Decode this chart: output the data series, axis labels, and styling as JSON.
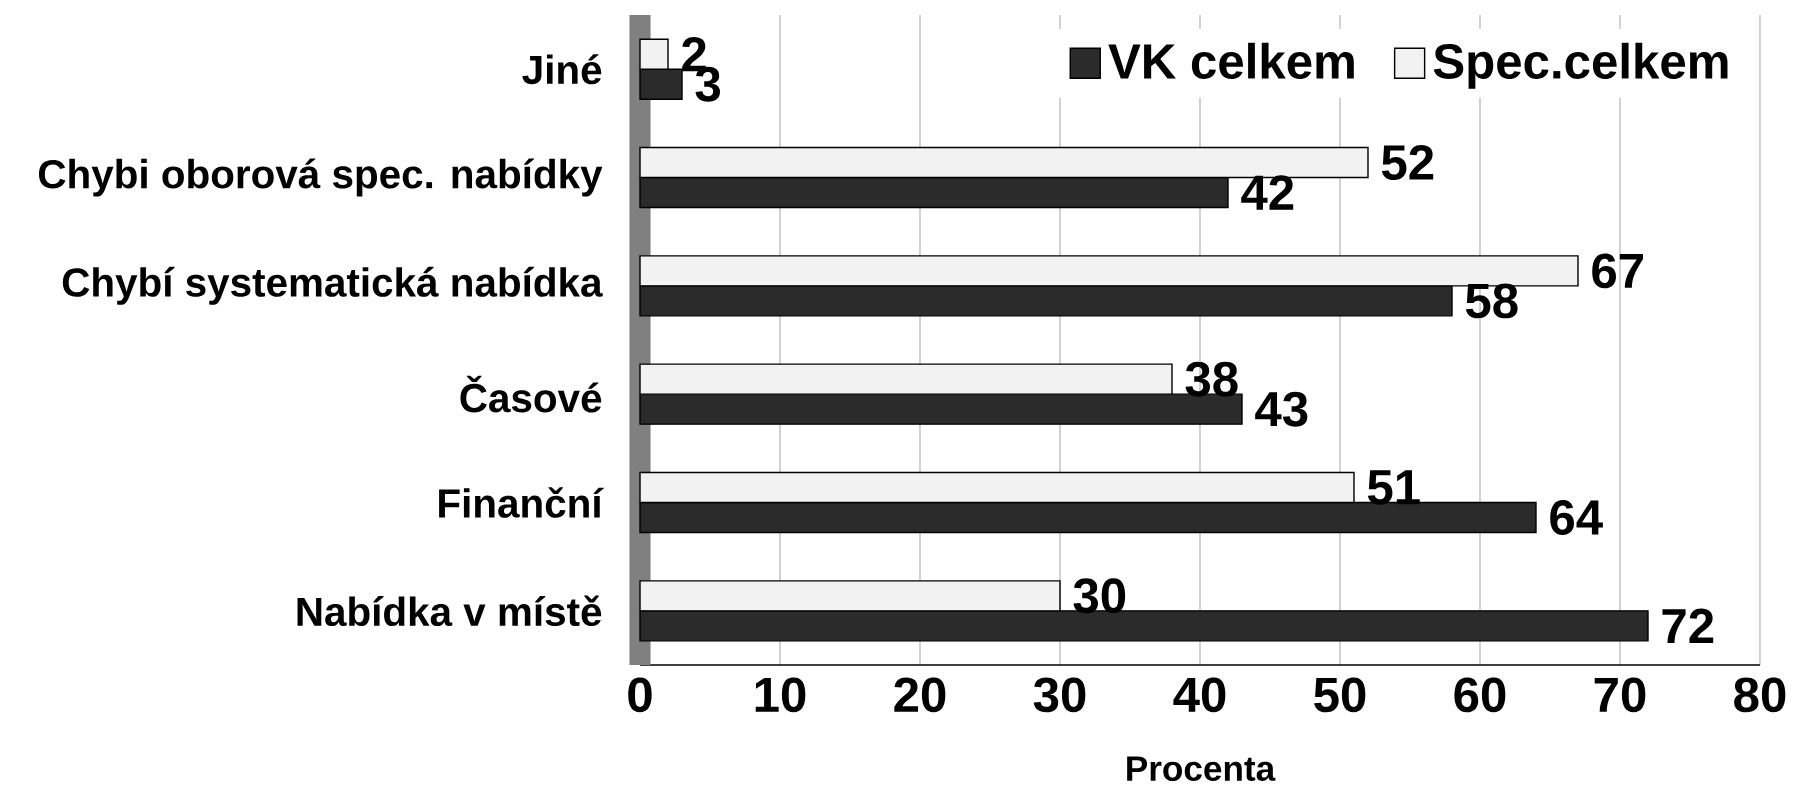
{
  "chart_data": {
    "type": "bar",
    "orientation": "horizontal",
    "xlabel": "Procenta",
    "categories": [
      "Jiné",
      "Chybi oborová spec. nabídky",
      "Chybí systematická nabídka",
      "Časové",
      "Finanční",
      "Nabídka v místě"
    ],
    "series": [
      {
        "name": "VK celkem",
        "color": "#2b2b2b",
        "values": [
          3,
          42,
          58,
          43,
          64,
          72
        ]
      },
      {
        "name": "Spec.celkem",
        "color": "#f2f2f2",
        "values": [
          2,
          52,
          67,
          38,
          51,
          30
        ]
      }
    ],
    "xlim": [
      0,
      80
    ],
    "xticks": [
      0,
      10,
      20,
      30,
      40,
      50,
      60,
      70,
      80
    ],
    "grid": "x",
    "legend": "top right",
    "data_labels": true
  }
}
